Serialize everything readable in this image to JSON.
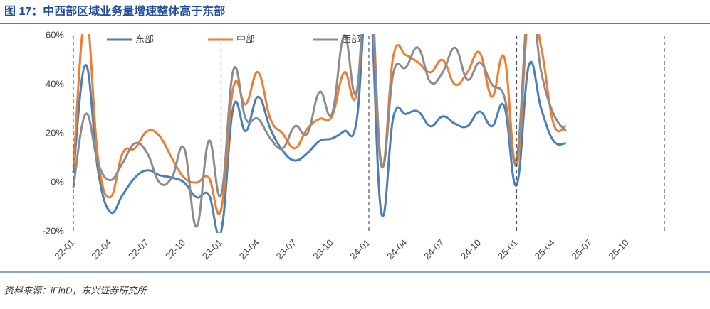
{
  "chart_data": {
    "type": "line",
    "title": "图 17：中西部区域业务量增速整体高于东部",
    "source": "资料来源：iFinD，东兴证券研究所",
    "categories": [
      "22-01",
      null,
      null,
      "22-04",
      null,
      null,
      "22-07",
      null,
      null,
      "22-10",
      null,
      null,
      "23-01",
      null,
      null,
      "23-04",
      null,
      null,
      "23-07",
      null,
      null,
      "23-10",
      null,
      null,
      "24-01",
      null,
      null,
      "24-04",
      null,
      null,
      "24-07",
      null,
      null,
      "24-10",
      null,
      null,
      "25-01",
      null,
      null,
      "25-04",
      null,
      null,
      "25-07",
      null,
      null,
      "25-10",
      null,
      null,
      null
    ],
    "series": [
      {
        "name": "东部",
        "color": "#4a7ebb",
        "values": [
          4,
          48,
          5,
          -12,
          -5,
          2,
          5,
          3,
          2,
          0,
          -6,
          -5,
          -20,
          31,
          21,
          35,
          22,
          13,
          9,
          12,
          17,
          18,
          21,
          25,
          80,
          -12,
          27,
          28,
          29,
          23,
          27,
          24,
          23,
          29,
          23,
          31,
          -1,
          48,
          30,
          17,
          16,
          null,
          null,
          null,
          null,
          null,
          null,
          null,
          null
        ]
      },
      {
        "name": "中部",
        "color": "#ed7d31",
        "values": [
          6,
          68,
          10,
          -6,
          12,
          14,
          21,
          19,
          10,
          2,
          0,
          2,
          -11,
          39,
          32,
          45,
          26,
          20,
          14,
          22,
          26,
          27,
          45,
          36,
          90,
          7,
          52,
          52,
          49,
          45,
          50,
          40,
          45,
          53,
          35,
          51,
          7,
          70,
          55,
          24,
          23,
          null,
          null,
          null,
          null,
          null,
          null,
          null,
          null
        ]
      },
      {
        "name": "西部",
        "color": "#8c8c8c",
        "values": [
          -2,
          28,
          8,
          1,
          8,
          16,
          12,
          0,
          2,
          14,
          -18,
          17,
          -5,
          46,
          26,
          26,
          18,
          14,
          23,
          20,
          37,
          28,
          60,
          37,
          95,
          8,
          45,
          47,
          55,
          41,
          45,
          55,
          42,
          49,
          40,
          35,
          10,
          75,
          45,
          28,
          21,
          null,
          null,
          null,
          null,
          null,
          null,
          null,
          null
        ]
      }
    ],
    "ylim": [
      -20,
      60
    ],
    "yticks": [
      {
        "value": -20,
        "label": "-20%"
      },
      {
        "value": 0,
        "label": "0%"
      },
      {
        "value": 20,
        "label": "20%"
      },
      {
        "value": 40,
        "label": "40%"
      },
      {
        "value": 60,
        "label": "60%"
      }
    ],
    "year_dividers": true,
    "legend": "top"
  }
}
